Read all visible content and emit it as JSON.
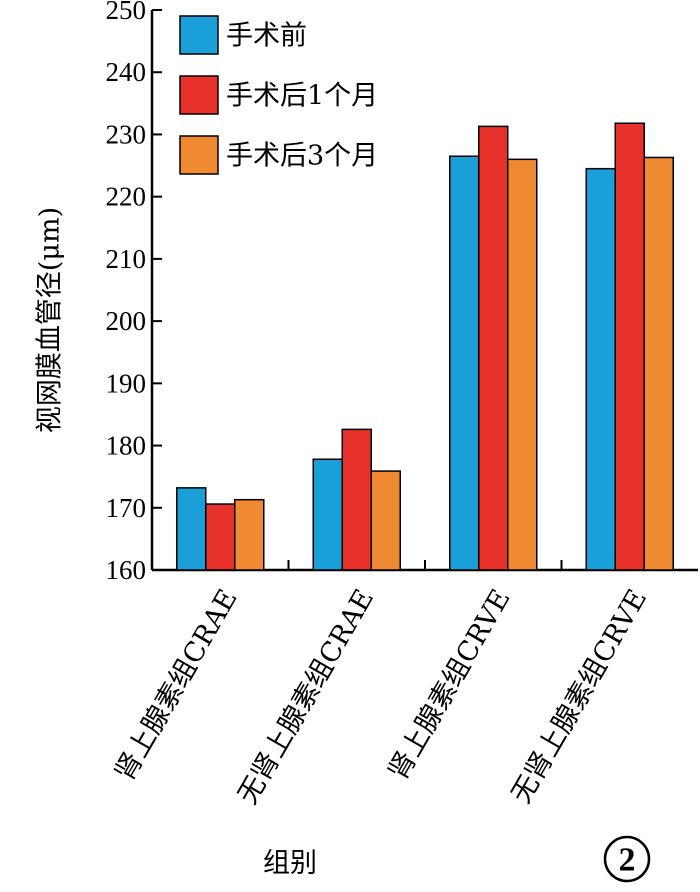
{
  "chart_data": {
    "type": "bar",
    "categories": [
      "肾上腺素组CRAE",
      "无肾上腺素组CRAE",
      "肾上腺素组CRVE",
      "无肾上腺素组CRVE"
    ],
    "series": [
      {
        "name": "手术前",
        "values": [
          173.2,
          177.8,
          226.5,
          224.5
        ],
        "color": "#1a9fd8"
      },
      {
        "name": "手术后1个月",
        "values": [
          170.6,
          182.6,
          231.3,
          231.8
        ],
        "color": "#e8302a"
      },
      {
        "name": "手术后3个月",
        "values": [
          171.3,
          175.9,
          226.0,
          226.3
        ],
        "color": "#f08a32"
      }
    ],
    "xlabel": "组别",
    "ylabel": "视网膜血管径(μm)",
    "ylim": [
      160,
      250
    ],
    "yticks": [
      160,
      170,
      180,
      190,
      200,
      210,
      220,
      230,
      240,
      250
    ],
    "legend_position": "top-left",
    "grid": false,
    "panel_label": "2"
  }
}
